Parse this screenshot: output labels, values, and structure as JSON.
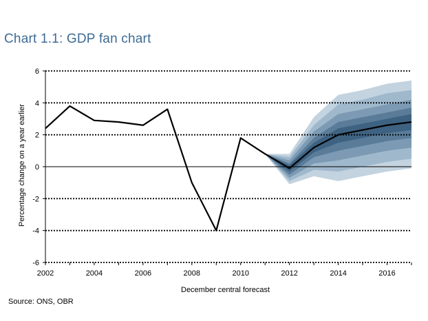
{
  "title": "Chart 1.1: GDP fan chart",
  "source": "Source: ONS, OBR",
  "chart_data": {
    "type": "area",
    "title": "Chart 1.1: GDP fan chart",
    "xlabel": "December central forecast",
    "ylabel": "Percentage change on a year earlier",
    "xlim": [
      2002,
      2017
    ],
    "ylim": [
      -6,
      6
    ],
    "xticks": [
      2002,
      2004,
      2006,
      2008,
      2010,
      2012,
      2014,
      2016
    ],
    "yticks": [
      -6,
      -4,
      -2,
      0,
      2,
      4,
      6
    ],
    "grid": "horizontal dotted",
    "colors": {
      "line": "#000000",
      "bands": [
        "#c3d3e0",
        "#9fb8cc",
        "#7c9ab3",
        "#5a7c99",
        "#3e6281"
      ],
      "grid": "#000000"
    },
    "series": [
      {
        "type": "line",
        "x": [
          2002,
          2003,
          2004,
          2005,
          2006,
          2007,
          2008,
          2009,
          2010,
          2011,
          2012,
          2013,
          2014,
          2015,
          2016,
          2017
        ],
        "values": [
          2.4,
          3.8,
          2.9,
          2.8,
          2.6,
          3.6,
          -1.0,
          -4.0,
          1.8,
          0.8,
          -0.1,
          1.2,
          2.0,
          2.3,
          2.6,
          2.8
        ]
      }
    ],
    "fan": {
      "x": [
        2011,
        2012,
        2013,
        2014,
        2015,
        2016,
        2017
      ],
      "bands": [
        {
          "lower": [
            0.8,
            -1.1,
            -0.6,
            -0.9,
            -0.6,
            -0.3,
            -0.1
          ],
          "upper": [
            0.8,
            0.8,
            3.1,
            4.5,
            4.8,
            5.2,
            5.4
          ]
        },
        {
          "lower": [
            0.8,
            -0.9,
            -0.2,
            -0.3,
            0.0,
            0.3,
            0.5
          ],
          "upper": [
            0.8,
            0.6,
            2.6,
            3.9,
            4.2,
            4.6,
            4.8
          ]
        },
        {
          "lower": [
            0.8,
            -0.7,
            0.2,
            0.4,
            0.7,
            1.0,
            1.2
          ],
          "upper": [
            0.8,
            0.4,
            2.2,
            3.3,
            3.6,
            3.9,
            4.2
          ]
        },
        {
          "lower": [
            0.8,
            -0.5,
            0.6,
            1.0,
            1.3,
            1.6,
            1.8
          ],
          "upper": [
            0.8,
            0.2,
            1.8,
            2.8,
            3.1,
            3.4,
            3.7
          ]
        },
        {
          "lower": [
            0.8,
            -0.3,
            0.9,
            1.5,
            1.8,
            2.1,
            2.3
          ],
          "upper": [
            0.8,
            0.1,
            1.5,
            2.4,
            2.7,
            3.0,
            3.3
          ]
        }
      ]
    }
  }
}
